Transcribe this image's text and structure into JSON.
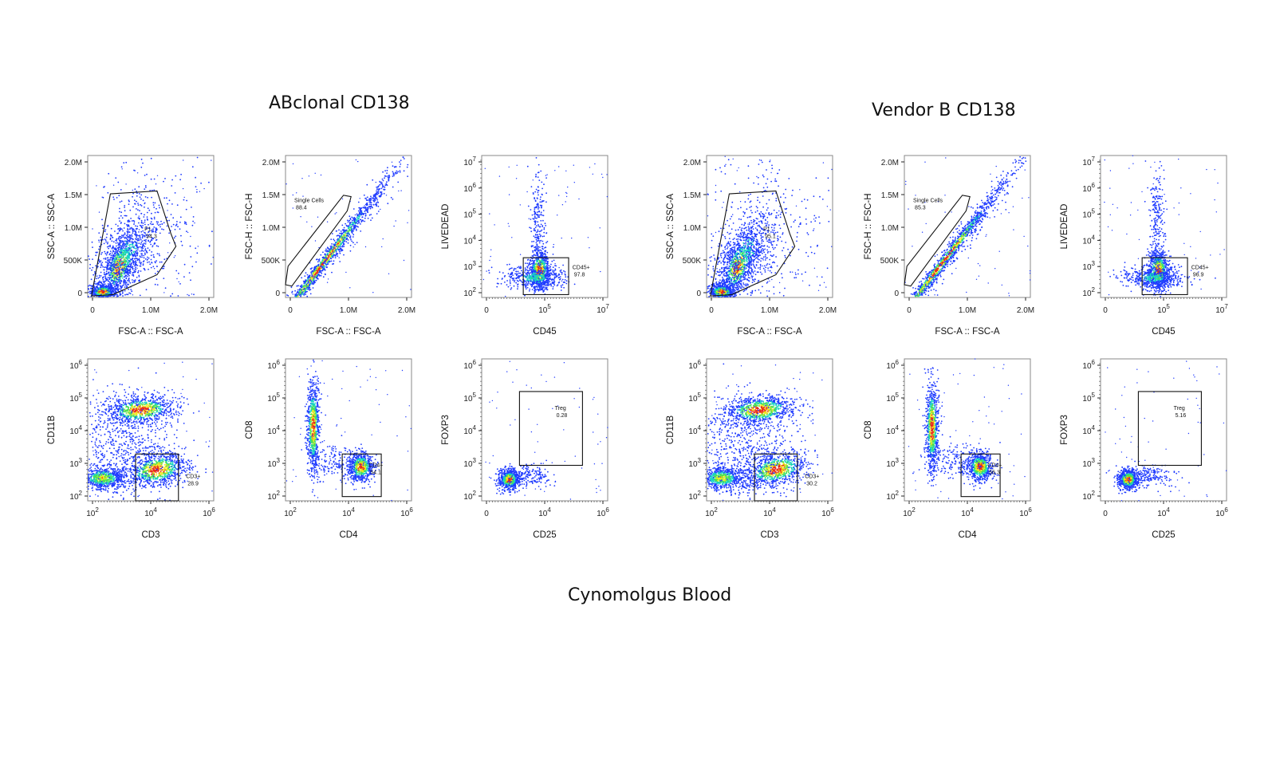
{
  "titles": {
    "left": "ABclonal CD138",
    "right": "Vendor B CD138",
    "bottom": "Cynomolgus Blood"
  },
  "colors": {
    "low": "#1f3bff",
    "mid": "#19d3c4",
    "mid2": "#4fe04f",
    "high": "#f3e81f",
    "peak": "#e8281c"
  },
  "chart_data": [
    {
      "group": "ABclonal CD138",
      "id": "abc-fsc-ssc",
      "type": "scatter",
      "xlabel": "FSC-A :: FSC-A",
      "ylabel": "SSC-A :: SSC-A",
      "xticks": [
        "0",
        "1.0M",
        "2.0M"
      ],
      "yticks": [
        "0",
        "500K",
        "1.0M",
        "1.5M",
        "2.0M"
      ],
      "gate": {
        "name": "P1",
        "value": "94.3"
      }
    },
    {
      "group": "ABclonal CD138",
      "id": "abc-singlets",
      "type": "scatter",
      "xlabel": "FSC-A :: FSC-A",
      "ylabel": "FSC-H :: FSC-H",
      "xticks": [
        "0",
        "1.0M",
        "2.0M"
      ],
      "yticks": [
        "0",
        "500K",
        "1.0M",
        "1.5M",
        "2.0M"
      ],
      "gate": {
        "name": "Single Cells",
        "value": "88.4"
      }
    },
    {
      "group": "ABclonal CD138",
      "id": "abc-cd45-live",
      "type": "scatter",
      "xlabel": "CD45",
      "ylabel": "LIVEDEAD",
      "xticks": [
        "0",
        "10^5",
        "10^7"
      ],
      "yticks": [
        "10^2",
        "10^3",
        "10^4",
        "10^5",
        "10^6",
        "10^7"
      ],
      "gate": {
        "name": "CD45+",
        "value": "97.8"
      }
    },
    {
      "group": "ABclonal CD138",
      "id": "abc-cd3-cd11b",
      "type": "scatter",
      "xlabel": "CD3",
      "ylabel": "CD11B",
      "xticks": [
        "10^2",
        "10^4",
        "10^6"
      ],
      "yticks": [
        "10^2",
        "10^3",
        "10^4",
        "10^5",
        "10^6"
      ],
      "gate": {
        "name": "CD3+",
        "value": "28.9"
      }
    },
    {
      "group": "ABclonal CD138",
      "id": "abc-cd4-cd8",
      "type": "scatter",
      "xlabel": "CD4",
      "ylabel": "CD8",
      "xticks": [
        "10^2",
        "10^4",
        "10^6"
      ],
      "yticks": [
        "10^2",
        "10^3",
        "10^4",
        "10^5",
        "10^6"
      ],
      "gate": {
        "name": "CD4+",
        "value": "54.1"
      }
    },
    {
      "group": "ABclonal CD138",
      "id": "abc-cd25-foxp3",
      "type": "scatter",
      "xlabel": "CD25",
      "ylabel": "FOXP3",
      "xticks": [
        "0",
        "10^4",
        "10^6"
      ],
      "yticks": [
        "10^2",
        "10^3",
        "10^4",
        "10^5",
        "10^6"
      ],
      "gate": {
        "name": "Treg",
        "value": "0.28"
      }
    },
    {
      "group": "Vendor B CD138",
      "id": "vb-fsc-ssc",
      "type": "scatter",
      "xlabel": "FSC-A :: FSC-A",
      "ylabel": "SSC-A :: SSC-A",
      "xticks": [
        "0",
        "1.0M",
        "2.0M"
      ],
      "yticks": [
        "0",
        "500K",
        "1.0M",
        "1.5M",
        "2.0M"
      ],
      "gate": {
        "name": "P1",
        "value": "95.1"
      }
    },
    {
      "group": "Vendor B CD138",
      "id": "vb-singlets",
      "type": "scatter",
      "xlabel": "FSC-A :: FSC-A",
      "ylabel": "FSC-H :: FSC-H",
      "xticks": [
        "0",
        "1.0M",
        "2.0M"
      ],
      "yticks": [
        "0",
        "500K",
        "1.0M",
        "1.5M",
        "2.0M"
      ],
      "gate": {
        "name": "Single Cells",
        "value": "85.3"
      }
    },
    {
      "group": "Vendor B CD138",
      "id": "vb-cd45-live",
      "type": "scatter",
      "xlabel": "CD45",
      "ylabel": "LIVEDEAD",
      "xticks": [
        "0",
        "10^5",
        "10^7"
      ],
      "yticks": [
        "10^2",
        "10^3",
        "10^4",
        "10^5",
        "10^6",
        "10^7"
      ],
      "gate": {
        "name": "CD45+",
        "value": "96.9"
      }
    },
    {
      "group": "Vendor B CD138",
      "id": "vb-cd3-cd11b",
      "type": "scatter",
      "xlabel": "CD3",
      "ylabel": "CD11B",
      "xticks": [
        "10^2",
        "10^4",
        "10^6"
      ],
      "yticks": [
        "10^2",
        "10^3",
        "10^4",
        "10^5",
        "10^6"
      ],
      "gate": {
        "name": "CD3+",
        "value": "30.2"
      }
    },
    {
      "group": "Vendor B CD138",
      "id": "vb-cd4-cd8",
      "type": "scatter",
      "xlabel": "CD4",
      "ylabel": "CD8",
      "xticks": [
        "10^2",
        "10^4",
        "10^6"
      ],
      "yticks": [
        "10^2",
        "10^3",
        "10^4",
        "10^5",
        "10^6"
      ],
      "gate": {
        "name": "CD4+",
        "value": "56.3"
      }
    },
    {
      "group": "Vendor B CD138",
      "id": "vb-cd25-foxp3",
      "type": "scatter",
      "xlabel": "CD25",
      "ylabel": "FOXP3",
      "xticks": [
        "0",
        "10^4",
        "10^6"
      ],
      "yticks": [
        "10^2",
        "10^3",
        "10^4",
        "10^5",
        "10^6"
      ],
      "gate": {
        "name": "Treg",
        "value": "5.16"
      }
    }
  ]
}
